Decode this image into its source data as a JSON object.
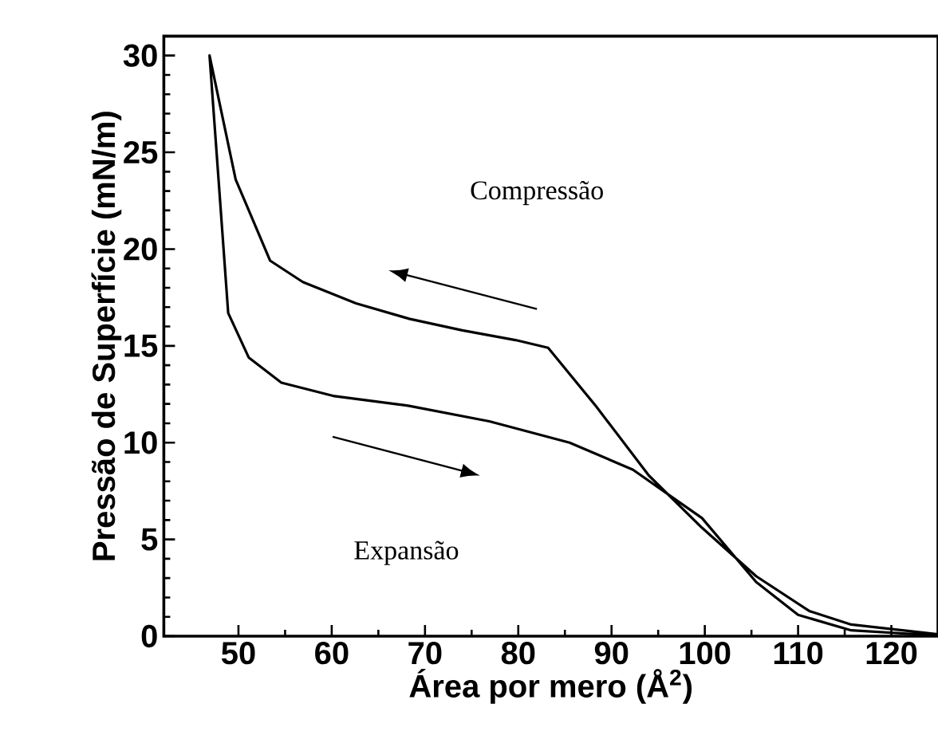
{
  "chart_data": {
    "type": "line",
    "xlabel": "Área por mero (Å$^{2}$)",
    "ylabel": "Pressão de Superfície (mN/m)",
    "xlim": [
      42,
      125
    ],
    "ylim": [
      0,
      31
    ],
    "xticks": [
      50,
      60,
      70,
      80,
      90,
      100,
      110,
      120
    ],
    "yticks": [
      0,
      5,
      10,
      15,
      20,
      25,
      30
    ],
    "grid": false,
    "line_style": "solid",
    "marker": "none",
    "annotations": [
      "Compressão",
      "Expansão"
    ],
    "series": [
      {
        "color": "#000000",
        "x": [
          125,
          115.7,
          111.2,
          105.5,
          99.7,
          94.0,
          88.3,
          83.2,
          79.7,
          74.0,
          68.3,
          62.6,
          56.9,
          53.4,
          49.7,
          46.9,
          47.7,
          48.9,
          51.1,
          54.6,
          60.3,
          68.3,
          76.9,
          85.5,
          92.3,
          99.7,
          105.5,
          110.0,
          115.7,
          125
        ],
        "values": [
          0.1,
          0.6,
          1.3,
          3.1,
          5.6,
          8.3,
          11.9,
          14.9,
          15.3,
          15.8,
          16.4,
          17.2,
          18.3,
          19.4,
          23.6,
          30.0,
          24.7,
          16.7,
          14.4,
          13.1,
          12.4,
          11.9,
          11.1,
          10.0,
          8.6,
          6.1,
          2.8,
          1.1,
          0.3,
          0.03
        ]
      }
    ]
  }
}
